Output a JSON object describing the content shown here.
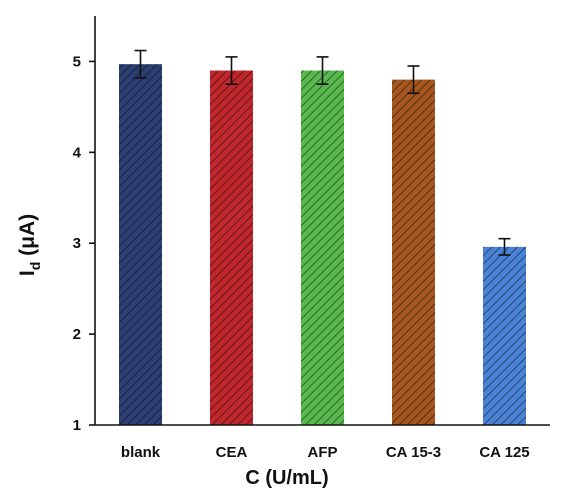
{
  "chart_data": {
    "type": "bar",
    "title": "",
    "xlabel": "C (U/mL)",
    "ylabel_main": "I",
    "ylabel_sub": "d",
    "ylabel_unit": " (μA)",
    "categories": [
      "blank",
      "CEA",
      "AFP",
      "CA 15-3",
      "CA 125"
    ],
    "values": [
      4.97,
      4.9,
      4.9,
      4.8,
      2.96
    ],
    "errors": [
      0.15,
      0.15,
      0.15,
      0.15,
      0.09
    ],
    "colors": [
      "#2b3f73",
      "#c0282d",
      "#58b94e",
      "#a6571f",
      "#4a83d6"
    ],
    "ylim": [
      1,
      5.5
    ],
    "yticks": [
      "1",
      "2",
      "3",
      "4",
      "5"
    ],
    "grid": false
  }
}
